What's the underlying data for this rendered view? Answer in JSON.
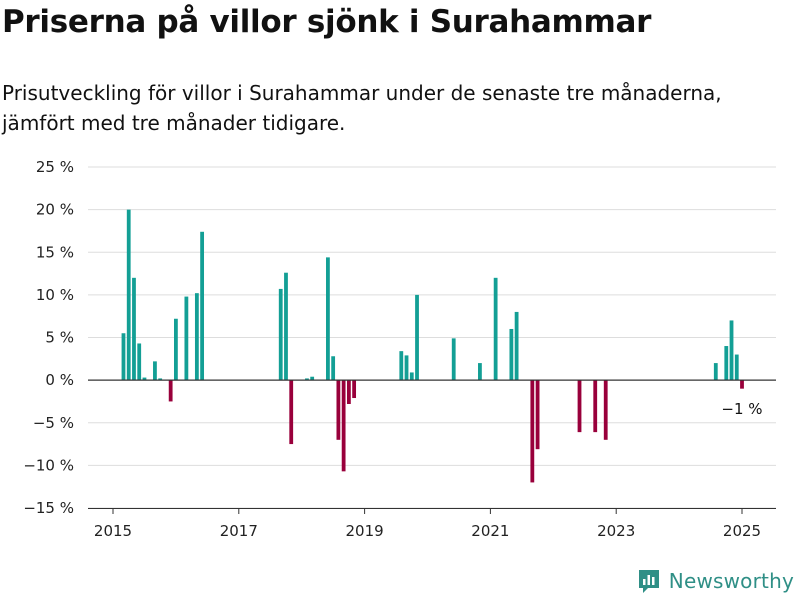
{
  "header": {
    "title": "Priserna på villor sjönk i Surahammar",
    "subtitle": "Prisutveckling för villor i Surahammar under de senaste tre månaderna, jämfört med tre månader tidigare."
  },
  "brand": {
    "name": "Newsworthy",
    "icon": "newsworthy-logo-icon"
  },
  "colors": {
    "positive": "#139f95",
    "negative": "#99003b",
    "zero_line": "#333333",
    "grid": "#dddddd"
  },
  "chart_data": {
    "type": "bar",
    "title": "Priserna på villor sjönk i Surahammar",
    "xlabel": "",
    "ylabel": "",
    "ylim": [
      -15,
      25
    ],
    "y_ticks": [
      25,
      20,
      15,
      10,
      5,
      0,
      -5,
      -10,
      -15
    ],
    "y_tick_labels": [
      "25 %",
      "20 %",
      "15 %",
      "10 %",
      "5 %",
      "0 %",
      "−5 %",
      "−10 %",
      "−15 %"
    ],
    "x_ticks": [
      "2015",
      "2017",
      "2019",
      "2021",
      "2023",
      "2025"
    ],
    "grid": true,
    "legend": "none",
    "annotation": {
      "text": "−1 %",
      "date": "2025-01"
    },
    "dates": [
      "2015-03",
      "2015-04",
      "2015-05",
      "2015-06",
      "2015-07",
      "2015-09",
      "2015-10",
      "2015-12",
      "2016-01",
      "2016-03",
      "2016-05",
      "2016-06",
      "2017-09",
      "2017-10",
      "2017-11",
      "2018-02",
      "2018-03",
      "2018-06",
      "2018-07",
      "2018-08",
      "2018-09",
      "2018-10",
      "2018-11",
      "2019-08",
      "2019-09",
      "2019-10",
      "2019-11",
      "2020-06",
      "2020-11",
      "2021-02",
      "2021-05",
      "2021-06",
      "2021-09",
      "2021-10",
      "2022-06",
      "2022-09",
      "2022-11",
      "2024-08",
      "2024-10",
      "2024-11",
      "2024-12",
      "2025-01"
    ],
    "values": [
      5.5,
      20,
      12,
      4.3,
      0.3,
      2.2,
      0.2,
      -2.5,
      7.2,
      9.8,
      10.2,
      17.4,
      10.7,
      12.6,
      -7.5,
      0.2,
      0.4,
      14.4,
      2.8,
      -7.0,
      -10.7,
      -2.8,
      -2.1,
      3.4,
      2.9,
      0.9,
      10,
      4.9,
      2.0,
      12,
      6.0,
      8.0,
      -12,
      -8.1,
      -6.1,
      -6.1,
      -7.0,
      2.0,
      4.0,
      7.0,
      3.0,
      -1
    ]
  }
}
